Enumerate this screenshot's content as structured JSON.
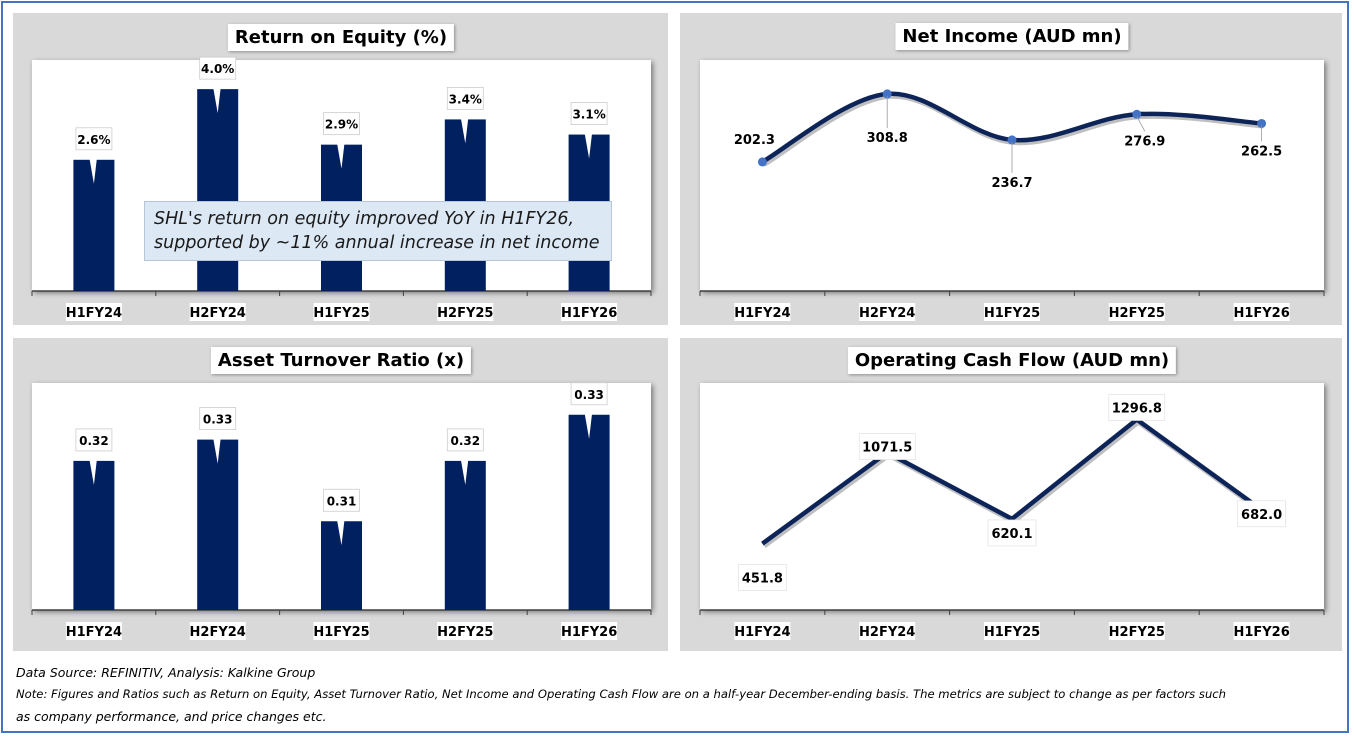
{
  "colors": {
    "bar": "#002060",
    "line": "#0d2459",
    "marker": "#4472c4",
    "panel_bg": "#d9d9d9",
    "callout_bg": "#dce8f4"
  },
  "chart_data": [
    {
      "type": "bar",
      "title": "Return on Equity (%)",
      "categories": [
        "H1FY24",
        "H2FY24",
        "H1FY25",
        "H2FY25",
        "H1FY26"
      ],
      "values": [
        2.6,
        4.0,
        2.9,
        3.4,
        3.1
      ],
      "labels": [
        "2.6%",
        "4.0%",
        "2.9%",
        "3.4%",
        "3.1%"
      ],
      "xlabel": "",
      "ylabel": "",
      "ylim": [
        0,
        4.3
      ],
      "annotation": "SHL's return on equity improved YoY in H1FY26, supported by ~11% annual increase in net income",
      "annotation_lines": [
        "SHL's return on equity improved YoY in H1FY26,",
        "supported by ~11% annual increase in net income"
      ]
    },
    {
      "type": "line",
      "title": "Net Income (AUD mn)",
      "categories": [
        "H1FY24",
        "H2FY24",
        "H1FY25",
        "H2FY25",
        "H1FY26"
      ],
      "values": [
        202.3,
        308.8,
        236.7,
        276.9,
        262.5
      ],
      "labels": [
        "202.3",
        "308.8",
        "236.7",
        "276.9",
        "262.5"
      ],
      "smooth": true,
      "xlabel": "",
      "ylabel": "",
      "ylim": [
        0,
        340
      ]
    },
    {
      "type": "bar",
      "title": "Asset Turnover Ratio (x)",
      "categories": [
        "H1FY24",
        "H2FY24",
        "H1FY25",
        "H2FY25",
        "H1FY26"
      ],
      "values": [
        0.32,
        0.33,
        0.31,
        0.32,
        0.33
      ],
      "display_values": [
        0.322,
        0.328,
        0.305,
        0.322,
        0.335
      ],
      "labels": [
        "0.32",
        "0.33",
        "0.31",
        "0.32",
        "0.33"
      ],
      "xlabel": "",
      "ylabel": "",
      "ylim": [
        0.28,
        0.34
      ]
    },
    {
      "type": "line",
      "title": "Operating Cash Flow (AUD mn)",
      "categories": [
        "H1FY24",
        "H2FY24",
        "H1FY25",
        "H2FY25",
        "H1FY26"
      ],
      "values": [
        451.8,
        1071.5,
        620.1,
        1296.8,
        682.0
      ],
      "labels": [
        "451.8",
        "1071.5",
        "620.1",
        "1296.8",
        "682.0"
      ],
      "smooth": false,
      "xlabel": "",
      "ylabel": "",
      "ylim": [
        0,
        1450
      ]
    }
  ],
  "footer": {
    "source": "Data Source: REFINITIV, Analysis: Kalkine Group",
    "note_line1": "Note: Figures and Ratios such as Return on Equity, Asset Turnover Ratio, Net Income and Operating Cash Flow are on a half-year December-ending basis. The metrics are subject to change as per factors such",
    "note_line2": "as company performance, and price changes etc."
  }
}
